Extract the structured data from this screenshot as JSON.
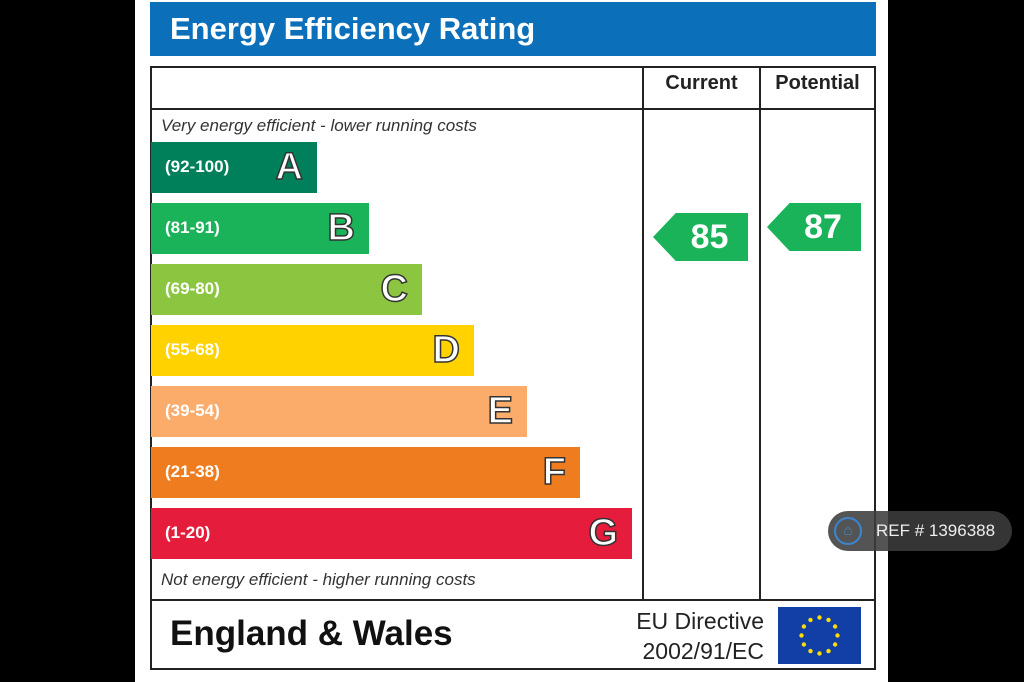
{
  "title": "Energy Efficiency Rating",
  "columns": {
    "current": "Current",
    "potential": "Potential"
  },
  "top_note": "Very energy efficient - lower running costs",
  "bottom_note": "Not energy efficient - higher running costs",
  "bands": [
    {
      "range": "(92-100)",
      "letter": "A",
      "color": "#00805a"
    },
    {
      "range": "(81-91)",
      "letter": "B",
      "color": "#1bb35a"
    },
    {
      "range": "(69-80)",
      "letter": "C",
      "color": "#8cc641"
    },
    {
      "range": "(55-68)",
      "letter": "D",
      "color": "#ffd200"
    },
    {
      "range": "(39-54)",
      "letter": "E",
      "color": "#fbab6a"
    },
    {
      "range": "(21-38)",
      "letter": "F",
      "color": "#ef7d1f"
    },
    {
      "range": "(1-20)",
      "letter": "G",
      "color": "#e51c3c"
    }
  ],
  "current": {
    "value": "85",
    "band": "B",
    "color": "#1bb35a"
  },
  "potential": {
    "value": "87",
    "band": "B",
    "color": "#1bb35a"
  },
  "footer": {
    "region": "England & Wales",
    "directive_line1": "EU Directive",
    "directive_line2": "2002/91/EC"
  },
  "badge": {
    "icon": "home-icon",
    "text": "REF # 1396388"
  }
}
